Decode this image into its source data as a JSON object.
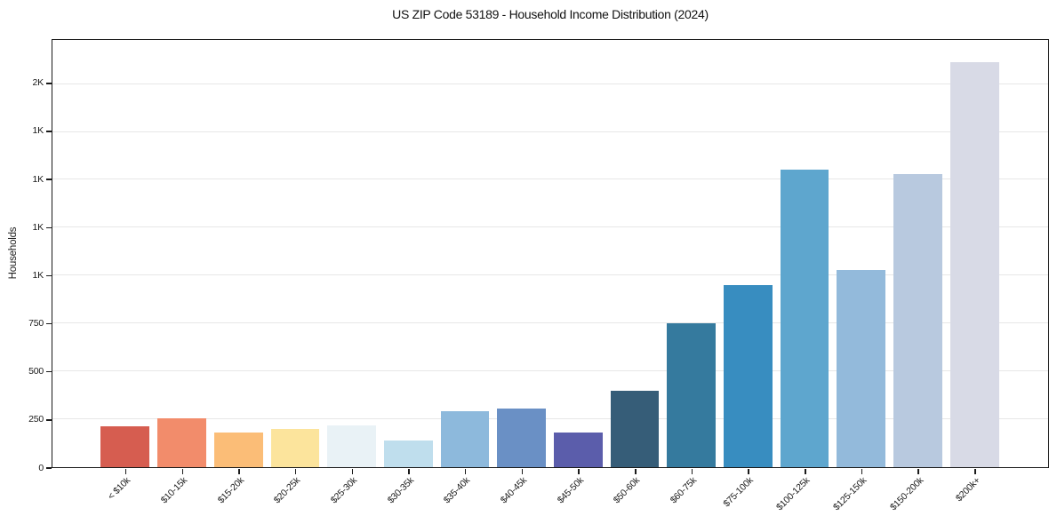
{
  "chart_data": {
    "type": "bar",
    "title": "US ZIP Code 53189 - Household Income Distribution (2024)",
    "xlabel": "",
    "ylabel": "Households",
    "categories": [
      "< $10k",
      "$10-15k",
      "$15-20k",
      "$20-25k",
      "$25-30k",
      "$30-35k",
      "$35-40k",
      "$40-45k",
      "$45-50k",
      "$50-60k",
      "$60-75k",
      "$75-100k",
      "$100-125k",
      "$125-150k",
      "$150-200k",
      "$200k+"
    ],
    "values": [
      215,
      255,
      180,
      200,
      220,
      140,
      290,
      305,
      180,
      400,
      750,
      950,
      1555,
      1030,
      1530,
      2115
    ],
    "bar_colors": [
      "#d65d50",
      "#f28c6b",
      "#fbbd77",
      "#fce49c",
      "#e9f2f6",
      "#bfdeed",
      "#8db9dc",
      "#6a90c5",
      "#5b5dab",
      "#365d78",
      "#357a9e",
      "#388dc0",
      "#5ea6ce",
      "#93badb",
      "#b8c9df",
      "#d8dae6"
    ],
    "y_ticks": [
      {
        "value": 0,
        "label": "0"
      },
      {
        "value": 250,
        "label": "250"
      },
      {
        "value": 500,
        "label": "500"
      },
      {
        "value": 750,
        "label": "750"
      },
      {
        "value": 1000,
        "label": "1K"
      },
      {
        "value": 1250,
        "label": "1K"
      },
      {
        "value": 1500,
        "label": "1K"
      },
      {
        "value": 1750,
        "label": "1K"
      },
      {
        "value": 2000,
        "label": "2K"
      }
    ],
    "ylim": [
      0,
      2230
    ],
    "grid": true,
    "legend_position": "none"
  },
  "colors": {
    "background": "#ffffff",
    "grid": "#e7e7e7",
    "spine": "#1a1a1a",
    "text": "#1a1a1a"
  }
}
